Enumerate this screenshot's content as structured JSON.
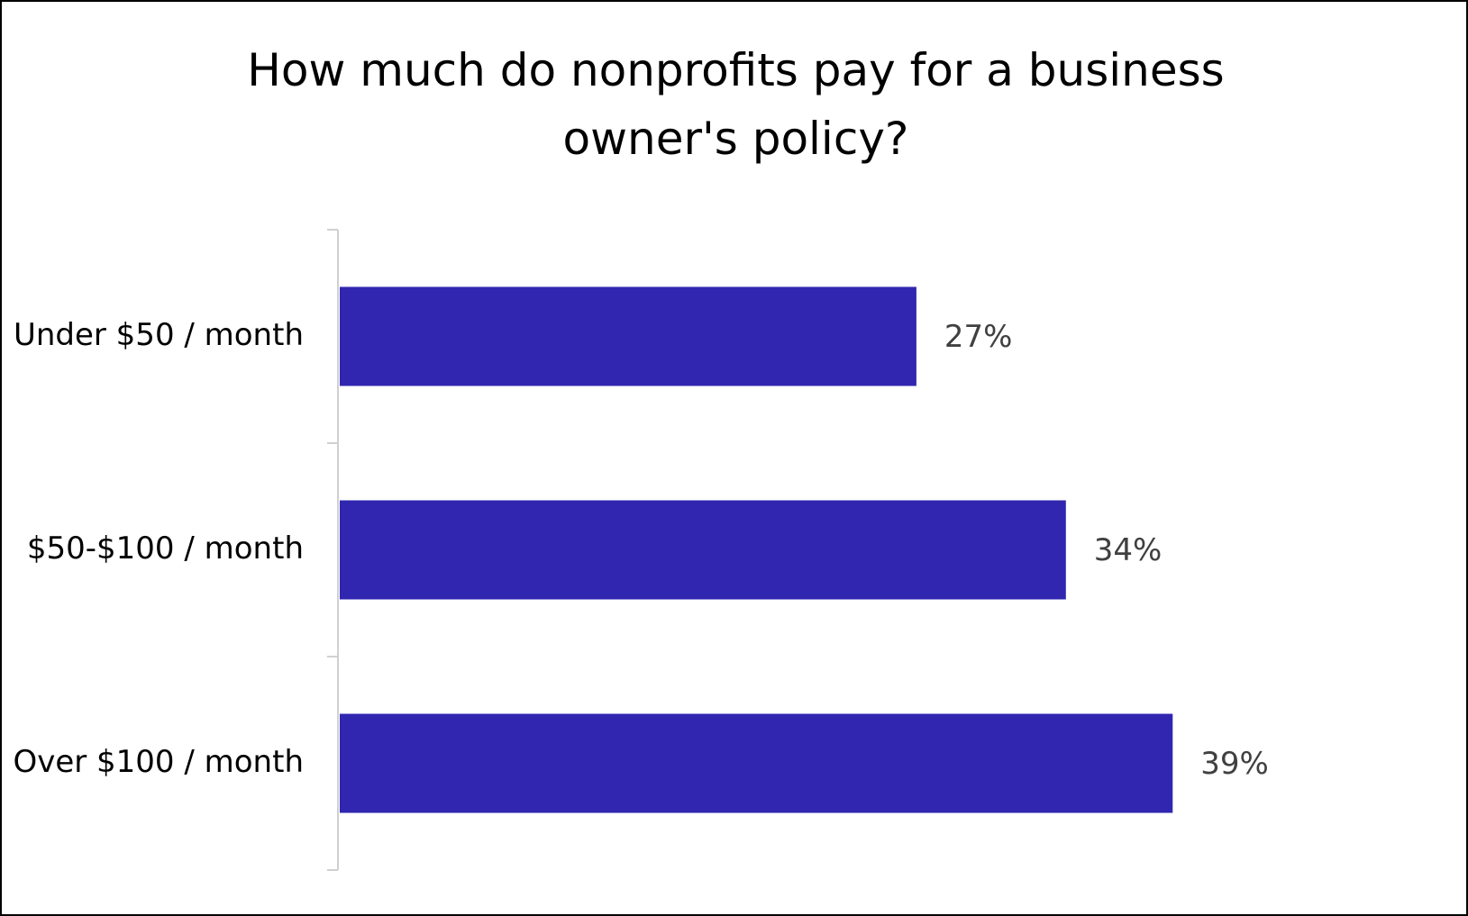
{
  "chart_data": {
    "type": "bar",
    "orientation": "horizontal",
    "title": "How much do nonprofits pay for a business owner's policy?",
    "categories": [
      "Under $50 / month",
      "$50-$100 / month",
      "Over $100 / month"
    ],
    "values": [
      27,
      34,
      39
    ],
    "value_labels": [
      "27%",
      "34%",
      "39%"
    ],
    "color": "#3126b0"
  }
}
